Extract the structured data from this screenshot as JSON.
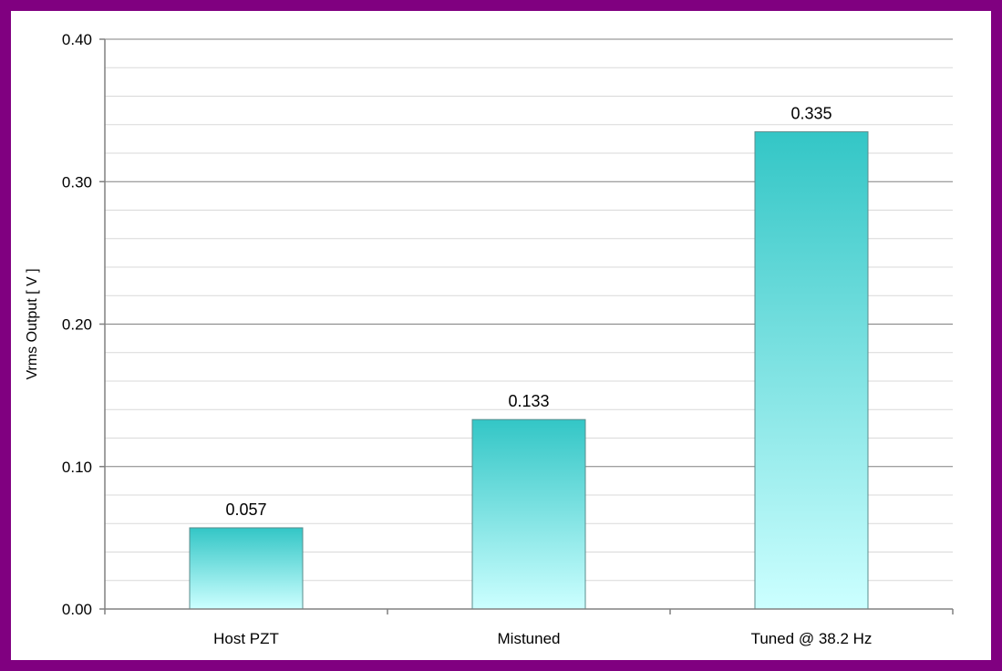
{
  "chart_data": {
    "type": "bar",
    "categories": [
      "Host PZT",
      "Mistuned",
      "Tuned @ 38.2 Hz"
    ],
    "values": [
      0.057,
      0.133,
      0.335
    ],
    "value_labels": [
      "0.057",
      "0.133",
      "0.335"
    ],
    "title": "",
    "xlabel": "",
    "ylabel": "Vrms Output [ V ]",
    "ylim": [
      0,
      0.4
    ],
    "yticks": [
      0.0,
      0.1,
      0.2,
      0.3,
      0.4
    ],
    "ytick_labels": [
      "0.00",
      "0.10",
      "0.20",
      "0.30",
      "0.40"
    ],
    "minor_ytick_step": 0.02,
    "grid": true,
    "legend": "none"
  },
  "colors": {
    "frame": "#800080",
    "bar_top": "#33c6c6",
    "bar_bottom": "#ccffff",
    "bar_edge": "#5a8c8c",
    "major_grid": "#808080",
    "minor_grid": "#d9d9d9",
    "axis": "#808080"
  }
}
